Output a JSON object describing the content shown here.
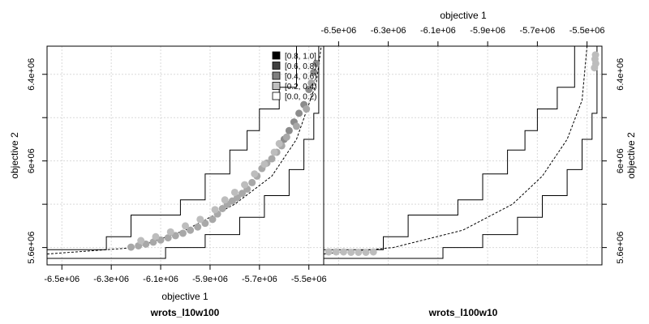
{
  "chart_data": [
    {
      "type": "scatter",
      "panel_title": "wrots_l10w100",
      "xlabel": "objective 1",
      "ylabel": "objective 2",
      "xlim": [
        -6560000.0,
        -5440000.0
      ],
      "ylim": [
        5520000.0,
        6530000.0
      ],
      "x_ticks": [
        "-6.5e+06",
        "-6.3e+06",
        "-6.1e+06",
        "-5.9e+06",
        "-5.7e+06",
        "-5.5e+06"
      ],
      "y_ticks": [
        "5.6e+06",
        "6e+06",
        "6.4e+06"
      ],
      "grid": true,
      "legend": {
        "position": "top-right",
        "entries": [
          {
            "label": "[0.8, 1.0]",
            "color": "#000000"
          },
          {
            "label": "[0.6, 0.8)",
            "color": "#404040"
          },
          {
            "label": "[0.4, 0.6)",
            "color": "#808080"
          },
          {
            "label": "[0.2, 0.4)",
            "color": "#bfbfbf"
          },
          {
            "label": "[0.0, 0.2)",
            "color": "#ffffff"
          }
        ]
      },
      "median_line": [
        [
          -6560000.0,
          5570000.0
        ],
        [
          -6200000.0,
          5600000.0
        ],
        [
          -6000000.0,
          5680000.0
        ],
        [
          -5800000.0,
          5800000.0
        ],
        [
          -5650000.0,
          5930000.0
        ],
        [
          -5550000.0,
          6100000.0
        ],
        [
          -5470000.0,
          6360000.0
        ],
        [
          -5450000.0,
          6530000.0
        ]
      ],
      "upper_attainment": [
        [
          -6560000.0,
          5590000.0
        ],
        [
          -6320000.0,
          5590000.0
        ],
        [
          -6320000.0,
          5650000.0
        ],
        [
          -6220000.0,
          5650000.0
        ],
        [
          -6220000.0,
          5750000.0
        ],
        [
          -6020000.0,
          5750000.0
        ],
        [
          -6020000.0,
          5820000.0
        ],
        [
          -5920000.0,
          5820000.0
        ],
        [
          -5920000.0,
          5940000.0
        ],
        [
          -5820000.0,
          5940000.0
        ],
        [
          -5820000.0,
          6050000.0
        ],
        [
          -5750000.0,
          6050000.0
        ],
        [
          -5750000.0,
          6140000.0
        ],
        [
          -5700000.0,
          6140000.0
        ],
        [
          -5700000.0,
          6240000.0
        ],
        [
          -5620000.0,
          6240000.0
        ],
        [
          -5620000.0,
          6340000.0
        ],
        [
          -5550000.0,
          6340000.0
        ],
        [
          -5550000.0,
          6530000.0
        ]
      ],
      "lower_attainment": [
        [
          -6560000.0,
          5550000.0
        ],
        [
          -6080000.0,
          5550000.0
        ],
        [
          -6080000.0,
          5600000.0
        ],
        [
          -5920000.0,
          5600000.0
        ],
        [
          -5920000.0,
          5660000.0
        ],
        [
          -5780000.0,
          5660000.0
        ],
        [
          -5780000.0,
          5740000.0
        ],
        [
          -5680000.0,
          5740000.0
        ],
        [
          -5680000.0,
          5840000.0
        ],
        [
          -5580000.0,
          5840000.0
        ],
        [
          -5580000.0,
          5960000.0
        ],
        [
          -5520000.0,
          5960000.0
        ],
        [
          -5520000.0,
          6100000.0
        ],
        [
          -5480000.0,
          6100000.0
        ],
        [
          -5480000.0,
          6220000.0
        ],
        [
          -5460000.0,
          6220000.0
        ],
        [
          -5460000.0,
          6530000.0
        ]
      ],
      "points": [
        {
          "x": -6220000.0,
          "y": 5602000.0,
          "level": 3
        },
        {
          "x": -6190000.0,
          "y": 5608000.0,
          "level": 3
        },
        {
          "x": -6160000.0,
          "y": 5616000.0,
          "level": 3
        },
        {
          "x": -6130000.0,
          "y": 5625000.0,
          "level": 3
        },
        {
          "x": -6100000.0,
          "y": 5635000.0,
          "level": 3
        },
        {
          "x": -6070000.0,
          "y": 5645000.0,
          "level": 3
        },
        {
          "x": -6040000.0,
          "y": 5655000.0,
          "level": 3
        },
        {
          "x": -6010000.0,
          "y": 5666000.0,
          "level": 3
        },
        {
          "x": -5980000.0,
          "y": 5680000.0,
          "level": 3
        },
        {
          "x": -5950000.0,
          "y": 5695000.0,
          "level": 3
        },
        {
          "x": -5920000.0,
          "y": 5712000.0,
          "level": 3
        },
        {
          "x": -5890000.0,
          "y": 5730000.0,
          "level": 3
        },
        {
          "x": -5870000.0,
          "y": 5755000.0,
          "level": 3
        },
        {
          "x": -5850000.0,
          "y": 5780000.0,
          "level": 3
        },
        {
          "x": -5830000.0,
          "y": 5800000.0,
          "level": 3
        },
        {
          "x": -5810000.0,
          "y": 5815000.0,
          "level": 3
        },
        {
          "x": -5790000.0,
          "y": 5830000.0,
          "level": 3
        },
        {
          "x": -5770000.0,
          "y": 5850000.0,
          "level": 3
        },
        {
          "x": -5750000.0,
          "y": 5870000.0,
          "level": 3
        },
        {
          "x": -5730000.0,
          "y": 5900000.0,
          "level": 3
        },
        {
          "x": -5710000.0,
          "y": 5930000.0,
          "level": 3
        },
        {
          "x": -5690000.0,
          "y": 5965000.0,
          "level": 3
        },
        {
          "x": -5670000.0,
          "y": 5990000.0,
          "level": 3
        },
        {
          "x": -5650000.0,
          "y": 6010000.0,
          "level": 3
        },
        {
          "x": -5630000.0,
          "y": 6040000.0,
          "level": 3
        },
        {
          "x": -5610000.0,
          "y": 6070000.0,
          "level": 3
        },
        {
          "x": -5600000.0,
          "y": 6100000.0,
          "level": 2
        },
        {
          "x": -5580000.0,
          "y": 6140000.0,
          "level": 2
        },
        {
          "x": -5560000.0,
          "y": 6180000.0,
          "level": 2
        },
        {
          "x": -5540000.0,
          "y": 6220000.0,
          "level": 2
        },
        {
          "x": -5520000.0,
          "y": 6260000.0,
          "level": 2
        },
        {
          "x": -5500000.0,
          "y": 6330000.0,
          "level": 2
        },
        {
          "x": -5480000.0,
          "y": 6410000.0,
          "level": 2
        },
        {
          "x": -5470000.0,
          "y": 6450000.0,
          "level": 2
        },
        {
          "x": -6180000.0,
          "y": 5632000.0,
          "level": 4
        },
        {
          "x": -6120000.0,
          "y": 5650000.0,
          "level": 4
        },
        {
          "x": -6060000.0,
          "y": 5672000.0,
          "level": 4
        },
        {
          "x": -6000000.0,
          "y": 5700000.0,
          "level": 4
        },
        {
          "x": -5940000.0,
          "y": 5730000.0,
          "level": 4
        },
        {
          "x": -5880000.0,
          "y": 5775000.0,
          "level": 4
        },
        {
          "x": -5840000.0,
          "y": 5820000.0,
          "level": 4
        },
        {
          "x": -5800000.0,
          "y": 5855000.0,
          "level": 4
        },
        {
          "x": -5760000.0,
          "y": 5890000.0,
          "level": 4
        },
        {
          "x": -5720000.0,
          "y": 5940000.0,
          "level": 4
        },
        {
          "x": -5680000.0,
          "y": 5985000.0,
          "level": 4
        },
        {
          "x": -5640000.0,
          "y": 6040000.0,
          "level": 4
        },
        {
          "x": -5620000.0,
          "y": 6080000.0,
          "level": 4
        },
        {
          "x": -5590000.0,
          "y": 6110000.0,
          "level": 3
        },
        {
          "x": -5550000.0,
          "y": 6160000.0,
          "level": 3
        },
        {
          "x": -5510000.0,
          "y": 6240000.0,
          "level": 3
        },
        {
          "x": -5490000.0,
          "y": 6360000.0,
          "level": 3
        }
      ]
    },
    {
      "type": "scatter",
      "panel_title": "wrots_l100w10",
      "xlabel": "objective 1",
      "ylabel": "objective 2",
      "xlim": [
        -6560000.0,
        -5440000.0
      ],
      "ylim": [
        5520000.0,
        6530000.0
      ],
      "x_ticks": [
        "-6.5e+06",
        "-6.3e+06",
        "-6.1e+06",
        "-5.9e+06",
        "-5.7e+06",
        "-5.5e+06"
      ],
      "y_ticks": [
        "5.6e+06",
        "6e+06",
        "6.4e+06"
      ],
      "grid": true,
      "median_line": [
        [
          -6560000.0,
          5570000.0
        ],
        [
          -6280000.0,
          5600000.0
        ],
        [
          -6000000.0,
          5680000.0
        ],
        [
          -5800000.0,
          5800000.0
        ],
        [
          -5680000.0,
          5930000.0
        ],
        [
          -5580000.0,
          6100000.0
        ],
        [
          -5520000.0,
          6280000.0
        ],
        [
          -5500000.0,
          6530000.0
        ]
      ],
      "upper_attainment": [
        [
          -6560000.0,
          5590000.0
        ],
        [
          -6320000.0,
          5590000.0
        ],
        [
          -6320000.0,
          5650000.0
        ],
        [
          -6220000.0,
          5650000.0
        ],
        [
          -6220000.0,
          5750000.0
        ],
        [
          -6020000.0,
          5750000.0
        ],
        [
          -6020000.0,
          5820000.0
        ],
        [
          -5920000.0,
          5820000.0
        ],
        [
          -5920000.0,
          5940000.0
        ],
        [
          -5820000.0,
          5940000.0
        ],
        [
          -5820000.0,
          6050000.0
        ],
        [
          -5750000.0,
          6050000.0
        ],
        [
          -5750000.0,
          6140000.0
        ],
        [
          -5700000.0,
          6140000.0
        ],
        [
          -5700000.0,
          6240000.0
        ],
        [
          -5620000.0,
          6240000.0
        ],
        [
          -5620000.0,
          6340000.0
        ],
        [
          -5550000.0,
          6340000.0
        ],
        [
          -5550000.0,
          6530000.0
        ]
      ],
      "lower_attainment": [
        [
          -6560000.0,
          5550000.0
        ],
        [
          -6080000.0,
          5550000.0
        ],
        [
          -6080000.0,
          5600000.0
        ],
        [
          -5920000.0,
          5600000.0
        ],
        [
          -5920000.0,
          5660000.0
        ],
        [
          -5780000.0,
          5660000.0
        ],
        [
          -5780000.0,
          5740000.0
        ],
        [
          -5680000.0,
          5740000.0
        ],
        [
          -5680000.0,
          5840000.0
        ],
        [
          -5580000.0,
          5840000.0
        ],
        [
          -5580000.0,
          5960000.0
        ],
        [
          -5520000.0,
          5960000.0
        ],
        [
          -5520000.0,
          6100000.0
        ],
        [
          -5480000.0,
          6100000.0
        ],
        [
          -5480000.0,
          6220000.0
        ],
        [
          -5460000.0,
          6220000.0
        ],
        [
          -5460000.0,
          6530000.0
        ]
      ],
      "points": [
        {
          "x": -6540000.0,
          "y": 5580000.0,
          "level": 4
        },
        {
          "x": -6510000.0,
          "y": 5580000.0,
          "level": 4
        },
        {
          "x": -6480000.0,
          "y": 5580000.0,
          "level": 4
        },
        {
          "x": -6450000.0,
          "y": 5578000.0,
          "level": 4
        },
        {
          "x": -6420000.0,
          "y": 5578000.0,
          "level": 4
        },
        {
          "x": -6390000.0,
          "y": 5578000.0,
          "level": 4
        },
        {
          "x": -6360000.0,
          "y": 5580000.0,
          "level": 4
        },
        {
          "x": -5470000.0,
          "y": 6430000.0,
          "level": 4
        },
        {
          "x": -5465000.0,
          "y": 6450000.0,
          "level": 4
        },
        {
          "x": -5468000.0,
          "y": 6470000.0,
          "level": 4
        },
        {
          "x": -5466000.0,
          "y": 6490000.0,
          "level": 4
        }
      ]
    }
  ]
}
